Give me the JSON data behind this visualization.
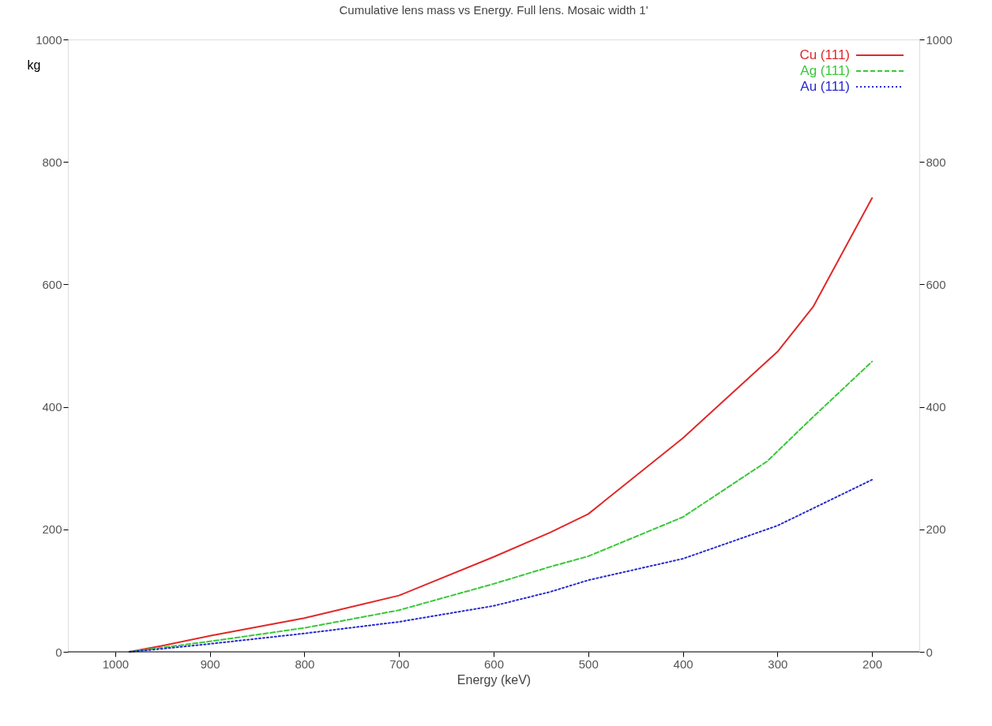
{
  "chart_data": {
    "type": "line",
    "title": "Cumulative lens mass vs Energy. Full lens. Mosaic width 1'",
    "xlabel": "Energy (keV)",
    "ylabel": "kg",
    "xlim": [
      1050,
      150
    ],
    "xticks": [
      1000,
      900,
      800,
      700,
      600,
      500,
      400,
      300,
      200
    ],
    "ylim": [
      0,
      1000
    ],
    "yticks": [
      0,
      200,
      400,
      600,
      800,
      1000
    ],
    "y2lim": [
      0,
      1000
    ],
    "y2ticks": [
      0,
      200,
      400,
      600,
      800,
      1000
    ],
    "grid": false,
    "legend": "top right",
    "marker": "none",
    "series": [
      {
        "name": "Cu (111)",
        "color": "#e02828",
        "line_style": "solid",
        "x": [
          985,
          950,
          900,
          800,
          700,
          600,
          540,
          500,
          400,
          300,
          262,
          200
        ],
        "values": [
          0,
          10,
          26,
          55,
          92,
          155,
          195,
          225,
          349,
          490,
          564,
          741
        ]
      },
      {
        "name": "Ag (111)",
        "color": "#38c838",
        "line_style": "dashed",
        "x": [
          985,
          950,
          900,
          800,
          700,
          600,
          540,
          500,
          400,
          311,
          262,
          200
        ],
        "values": [
          0,
          7,
          17,
          39,
          68,
          111,
          139,
          156,
          220,
          311,
          384,
          474
        ]
      },
      {
        "name": "Au (111)",
        "color": "#2828d0",
        "line_style": "dotted",
        "x": [
          985,
          950,
          900,
          800,
          700,
          600,
          540,
          500,
          400,
          300,
          200
        ],
        "values": [
          0,
          5,
          13,
          30,
          49,
          75,
          98,
          117,
          152,
          206,
          281
        ]
      }
    ]
  }
}
